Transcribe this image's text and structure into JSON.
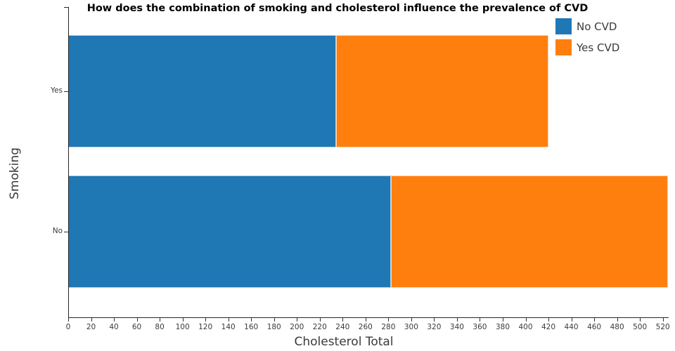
{
  "chart_data": {
    "type": "bar",
    "orientation": "horizontal",
    "stacked": true,
    "title": "How does the combination of smoking and cholesterol influence the prevalence of CVD",
    "xlabel": "Cholesterol Total",
    "ylabel": "Smoking",
    "categories": [
      "Yes",
      "No"
    ],
    "series": [
      {
        "name": "No CVD",
        "color": "#1f77b4",
        "values": [
          234,
          282
        ]
      },
      {
        "name": "Yes CVD",
        "color": "#ff7f0e",
        "values": [
          186,
          242.5
        ]
      }
    ],
    "totals": [
      420,
      524.5
    ],
    "xlim": [
      0,
      525
    ],
    "x_ticks": [
      0,
      20,
      40,
      60,
      80,
      100,
      120,
      140,
      160,
      180,
      200,
      220,
      240,
      260,
      280,
      300,
      320,
      340,
      360,
      380,
      400,
      420,
      440,
      460,
      480,
      500,
      520
    ],
    "legend_position": "top-right",
    "grid": false,
    "colors": {
      "no_cvd": "#1f77b4",
      "yes_cvd": "#ff7f0e",
      "axis": "#262626",
      "text": "#3a3a3a"
    }
  }
}
